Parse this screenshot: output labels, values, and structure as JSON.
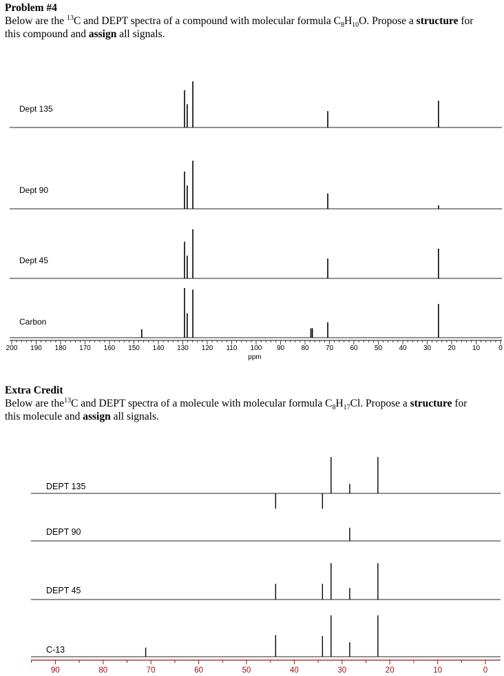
{
  "problem": {
    "title": "Problem #4",
    "line1_a": "Below are the ",
    "line1_sup": "13",
    "line1_b": "C and DEPT spectra of a compound with molecular formula C",
    "f1": "8",
    "f_h": "H",
    "f2": "10",
    "f_end": "O.  Propose a ",
    "bold1": "structure",
    "after_bold1": " for",
    "line2_a": "this compound and ",
    "bold2": "assign",
    "line2_b": " all signals."
  },
  "extra": {
    "title": "Extra Credit",
    "line1_a": "Below are the",
    "line1_sup": "13",
    "line1_b": "C and DEPT spectra of a molecule with molecular formula C",
    "f1": "8",
    "f_h": "H",
    "f2": "17",
    "f_end": "Cl.  Propose a ",
    "bold1": "structure",
    "after_bold1": " for",
    "line2_a": "this molecule and ",
    "bold2": "assign",
    "line2_b": " all signals."
  },
  "chart_data": [
    {
      "type": "line",
      "title": "",
      "xlabel": "ppm",
      "xlim": [
        200,
        0
      ],
      "x_ticks": [
        200,
        190,
        180,
        170,
        160,
        150,
        140,
        130,
        120,
        110,
        100,
        90,
        80,
        70,
        60,
        50,
        40,
        30,
        20,
        10,
        0
      ],
      "axis_color": "#000000",
      "intensity_units": "relative",
      "panels": [
        {
          "name": "Dept 135",
          "peaks": [
            [
              129.3,
              0.75
            ],
            [
              128.2,
              0.47
            ],
            [
              125.9,
              0.93
            ],
            [
              70.7,
              0.33
            ],
            [
              25.4,
              0.54
            ]
          ]
        },
        {
          "name": "Dept 90",
          "peaks": [
            [
              129.3,
              0.75
            ],
            [
              128.2,
              0.47
            ],
            [
              125.9,
              0.97
            ],
            [
              70.7,
              0.31
            ],
            [
              25.4,
              0.07
            ]
          ]
        },
        {
          "name": "Dept 45",
          "peaks": [
            [
              129.3,
              0.74
            ],
            [
              128.2,
              0.46
            ],
            [
              125.9,
              0.99
            ],
            [
              70.7,
              0.4
            ],
            [
              25.4,
              0.6
            ]
          ]
        },
        {
          "name": "Carbon",
          "peaks": [
            [
              146.8,
              0.17
            ],
            [
              129.3,
              1.0
            ],
            [
              128.2,
              0.49
            ],
            [
              125.9,
              0.97
            ],
            [
              77.6,
              0.19
            ],
            [
              77.0,
              0.19
            ],
            [
              70.7,
              0.31
            ],
            [
              25.4,
              0.68
            ]
          ]
        }
      ]
    },
    {
      "type": "line",
      "title": "",
      "xlabel": "",
      "xlim": [
        95,
        -2
      ],
      "x_ticks": [
        90,
        80,
        70,
        60,
        50,
        40,
        30,
        20,
        10,
        0
      ],
      "axis_color": "#a01010",
      "intensity_units": "relative",
      "panels": [
        {
          "name": "DEPT 135",
          "peaks": [
            [
              43.9,
              -0.37
            ],
            [
              34.1,
              -0.37
            ],
            [
              32.3,
              0.88
            ],
            [
              28.4,
              0.23
            ],
            [
              22.5,
              0.88
            ]
          ]
        },
        {
          "name": "DEPT 90",
          "peaks": [
            [
              28.4,
              0.32
            ]
          ]
        },
        {
          "name": "DEPT 45",
          "peaks": [
            [
              43.9,
              0.38
            ],
            [
              34.1,
              0.38
            ],
            [
              32.3,
              0.88
            ],
            [
              28.4,
              0.28
            ],
            [
              22.5,
              0.88
            ]
          ]
        },
        {
          "name": "C-13",
          "peaks": [
            [
              71.1,
              0.22
            ],
            [
              43.9,
              0.52
            ],
            [
              34.1,
              0.5
            ],
            [
              32.3,
              1.0
            ],
            [
              28.4,
              0.35
            ],
            [
              22.5,
              1.0
            ]
          ]
        }
      ]
    }
  ]
}
